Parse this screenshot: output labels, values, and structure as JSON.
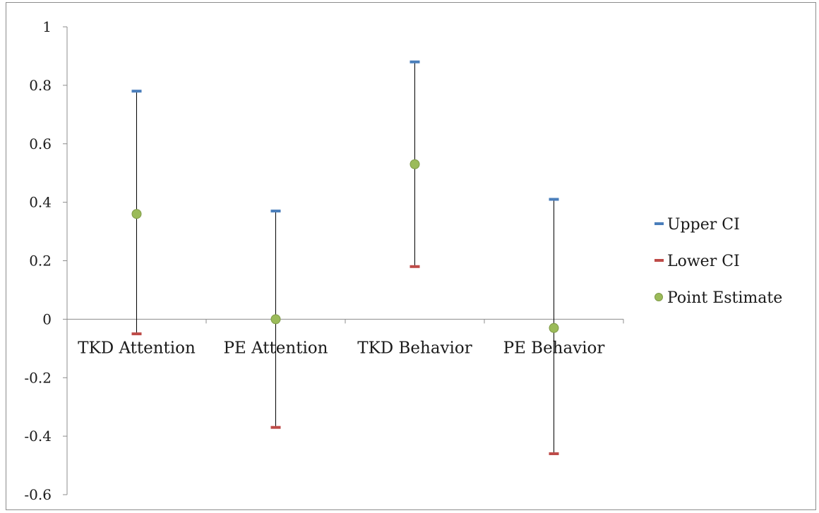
{
  "chart_data": {
    "type": "scatter",
    "title": "",
    "xlabel": "",
    "ylabel": "",
    "categories": [
      "TKD Attention",
      "PE Attention",
      "TKD Behavior",
      "PE Behavior"
    ],
    "ylim": [
      -0.6,
      1
    ],
    "y_ticks": [
      "1",
      "0.8",
      "0.6",
      "0.4",
      "0.2",
      "0",
      "-0.2",
      "-0.4",
      "-0.6"
    ],
    "y_tick_values": [
      1,
      0.8,
      0.6,
      0.4,
      0.2,
      0,
      -0.2,
      -0.4,
      -0.6
    ],
    "series": [
      {
        "name": "Upper CI",
        "values": [
          0.78,
          0.37,
          0.88,
          0.41
        ],
        "color": "#4a7ebb"
      },
      {
        "name": "Lower CI",
        "values": [
          -0.05,
          -0.37,
          0.18,
          -0.46
        ],
        "color": "#be4b48"
      },
      {
        "name": "Point Estimate",
        "values": [
          0.36,
          0.0,
          0.53,
          -0.03
        ],
        "color": "#9bbb59"
      }
    ],
    "error_bar_color": "#000000",
    "legend_position": "right",
    "grid": false
  }
}
